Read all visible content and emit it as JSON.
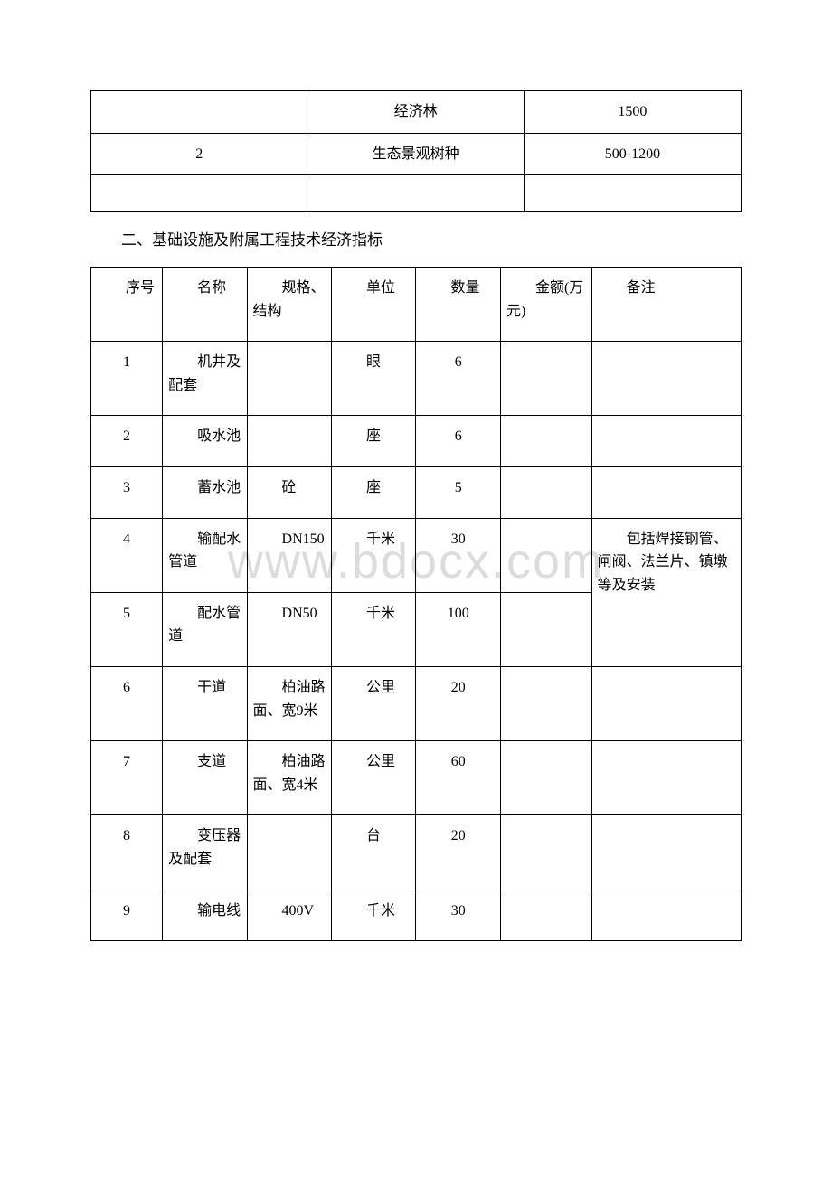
{
  "watermark": "www.bdocx.com",
  "table1": {
    "col_widths": [
      "33.3%",
      "33.3%",
      "33.4%"
    ],
    "rows": [
      {
        "c1": "",
        "c2": "经济林",
        "c3": "1500"
      },
      {
        "c1": "2",
        "c2": "生态景观树种",
        "c3": "500-1200"
      },
      {
        "c1": "",
        "c2": "",
        "c3": ""
      }
    ],
    "styling": {
      "border_color": "#000000",
      "text_align": "center",
      "font_size": 16,
      "cell_padding": 10
    }
  },
  "heading": "二、基础设施及附属工程技术经济指标",
  "table2": {
    "header": {
      "seq": "序号",
      "name": "名称",
      "spec": "规格、结构",
      "unit": "单位",
      "qty": "数量",
      "amt": "金额(万元)",
      "note": "备注"
    },
    "col_widths": [
      "11%",
      "13%",
      "13%",
      "13%",
      "13%",
      "14%",
      "23%"
    ],
    "rows": [
      {
        "seq": "1",
        "name": "机井及配套",
        "spec": "",
        "unit": "眼",
        "qty": "6",
        "amt": "",
        "note": ""
      },
      {
        "seq": "2",
        "name": "吸水池",
        "spec": "",
        "unit": "座",
        "qty": "6",
        "amt": "",
        "note": ""
      },
      {
        "seq": "3",
        "name": "蓄水池",
        "spec": "砼",
        "unit": "座",
        "qty": "5",
        "amt": "",
        "note": ""
      },
      {
        "seq": "4",
        "name": "输配水管道",
        "spec": "DN150",
        "unit": "千米",
        "qty": "30",
        "amt": "",
        "note_span": true
      },
      {
        "seq": "5",
        "name": "配水管道",
        "spec": "DN50",
        "unit": "千米",
        "qty": "100",
        "amt": ""
      },
      {
        "seq": "6",
        "name": "干道",
        "spec": "柏油路面、宽9米",
        "unit": "公里",
        "qty": "20",
        "amt": "",
        "note": ""
      },
      {
        "seq": "7",
        "name": "支道",
        "spec": "柏油路面、宽4米",
        "unit": "公里",
        "qty": "60",
        "amt": "",
        "note": ""
      },
      {
        "seq": "8",
        "name": "变压器及配套",
        "spec": "",
        "unit": "台",
        "qty": "20",
        "amt": "",
        "note": ""
      },
      {
        "seq": "9",
        "name": "输电线",
        "spec": "400V",
        "unit": "千米",
        "qty": "30",
        "amt": "",
        "note": ""
      }
    ],
    "merged_note": "包括焊接钢管、闸阀、法兰片、镇墩等及安装",
    "styling": {
      "border_color": "#000000",
      "font_size": 16,
      "line_height": 1.6,
      "header_indent": "2em",
      "data_indent": "2em",
      "qty_align": "center",
      "seq_align": "center"
    }
  },
  "colors": {
    "background": "#ffffff",
    "text": "#000000",
    "border": "#000000",
    "watermark": "#dcdcdc"
  },
  "typography": {
    "body_font": "SimSun",
    "body_size": 16,
    "heading_size": 17,
    "watermark_size": 54
  }
}
